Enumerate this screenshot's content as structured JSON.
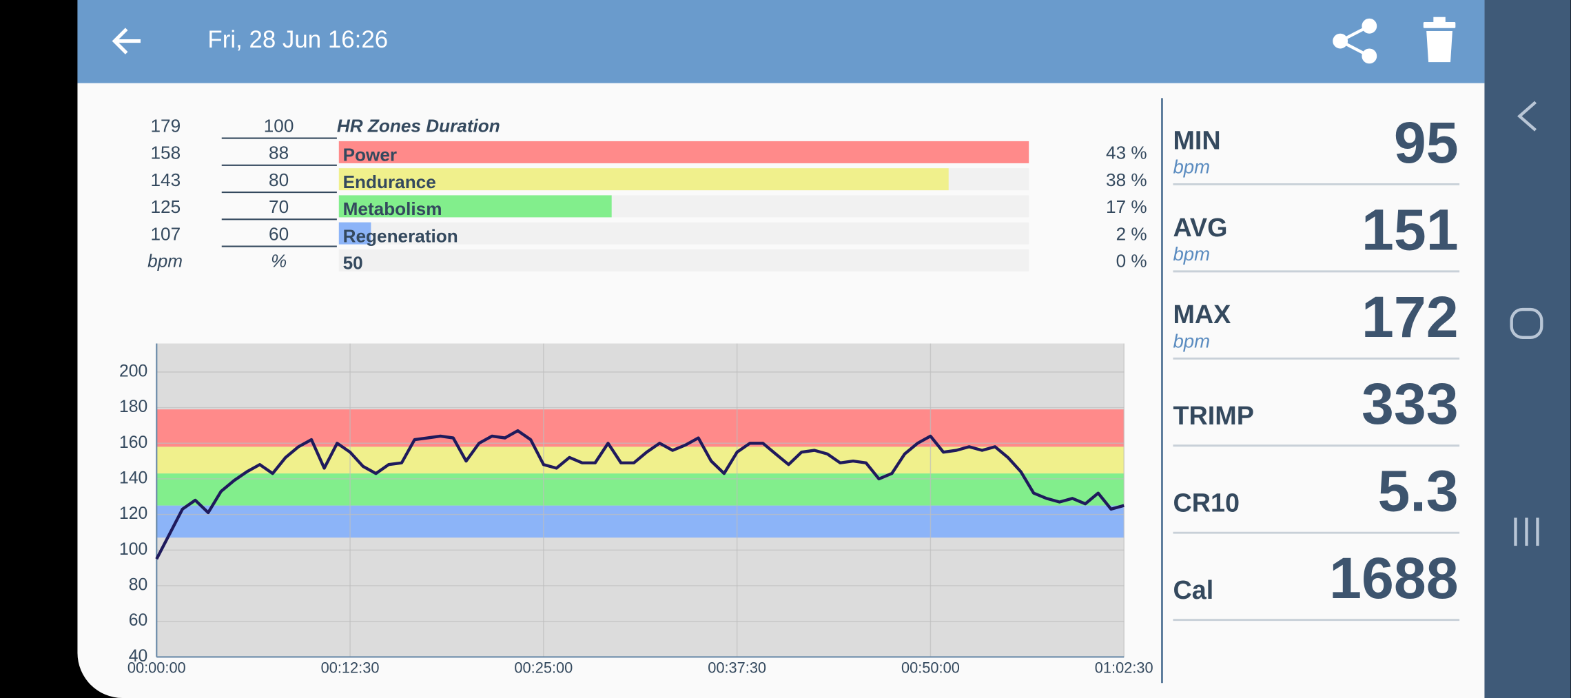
{
  "header": {
    "title": "Fri, 28 Jun 16:26"
  },
  "zones": {
    "title": "HR Zones Duration",
    "top_bpm": 179,
    "top_pct": 100,
    "bpm_unit": "bpm",
    "pct_unit": "%",
    "rows": [
      {
        "bpm": 158,
        "pct": 88,
        "name": "Power",
        "color": "#ff8a8a",
        "value": 43,
        "value_label": "43 %"
      },
      {
        "bpm": 143,
        "pct": 80,
        "name": "Endurance",
        "color": "#f0f08c",
        "value": 38,
        "value_label": "38 %"
      },
      {
        "bpm": 125,
        "pct": 70,
        "name": "Metabolism",
        "color": "#82ee8c",
        "value": 17,
        "value_label": "17 %"
      },
      {
        "bpm": 107,
        "pct": 60,
        "name": "Regeneration",
        "color": "#8cb4f8",
        "value": 2,
        "value_label": "2 %"
      }
    ],
    "floor": {
      "pct": 50,
      "value": 0,
      "value_label": "0 %"
    }
  },
  "chart_data": {
    "type": "line",
    "color": "#1f1a5c",
    "x": [
      0,
      50,
      100,
      150,
      200,
      250,
      300,
      350,
      400,
      450,
      500,
      550,
      600,
      650,
      700,
      750,
      800,
      850,
      900,
      950,
      1000,
      1050,
      1100,
      1150,
      1200,
      1250,
      1300,
      1350,
      1400,
      1450,
      1500,
      1550,
      1600,
      1650,
      1700,
      1750,
      1800,
      1850,
      1900,
      1950,
      2000,
      2050,
      2100,
      2150,
      2200,
      2250,
      2300,
      2350,
      2400,
      2450,
      2500,
      2550,
      2600,
      2650,
      2700,
      2750,
      2800,
      2850,
      2900,
      2950,
      3000,
      3050,
      3100,
      3150,
      3200,
      3250,
      3300,
      3350,
      3400,
      3450,
      3500,
      3550,
      3600,
      3650,
      3700,
      3750
    ],
    "values": [
      95,
      109,
      123,
      128,
      121,
      133,
      139,
      144,
      148,
      143,
      152,
      158,
      162,
      146,
      160,
      155,
      147,
      143,
      148,
      149,
      162,
      163,
      164,
      163,
      150,
      160,
      164,
      163,
      167,
      162,
      148,
      146,
      152,
      149,
      149,
      160,
      149,
      149,
      155,
      160,
      156,
      159,
      163,
      150,
      143,
      155,
      160,
      160,
      154,
      148,
      155,
      156,
      154,
      149,
      150,
      149,
      140,
      143,
      154,
      160,
      164,
      155,
      156,
      158,
      156,
      158,
      152,
      144,
      132,
      129,
      127,
      129,
      126,
      132,
      123,
      125
    ],
    "xlim": [
      0,
      3750
    ],
    "xticks": [
      {
        "value": 0,
        "label": "00:00:00"
      },
      {
        "value": 750,
        "label": "00:12:30"
      },
      {
        "value": 1500,
        "label": "00:25:00"
      },
      {
        "value": 2250,
        "label": "00:37:30"
      },
      {
        "value": 3000,
        "label": "00:50:00"
      },
      {
        "value": 3750,
        "label": "01:02:30"
      }
    ],
    "ylim": [
      40,
      216
    ],
    "yticks": [
      40,
      60,
      80,
      100,
      120,
      140,
      160,
      180,
      200
    ],
    "grid": true
  },
  "stats": [
    {
      "label": "MIN",
      "unit": "bpm",
      "value": 95
    },
    {
      "label": "AVG",
      "unit": "bpm",
      "value": 151
    },
    {
      "label": "MAX",
      "unit": "bpm",
      "value": 172
    },
    {
      "label": "TRIMP",
      "value": 333
    },
    {
      "label": "CR10",
      "value": 5.3
    },
    {
      "label": "Cal",
      "value": 1688
    }
  ]
}
